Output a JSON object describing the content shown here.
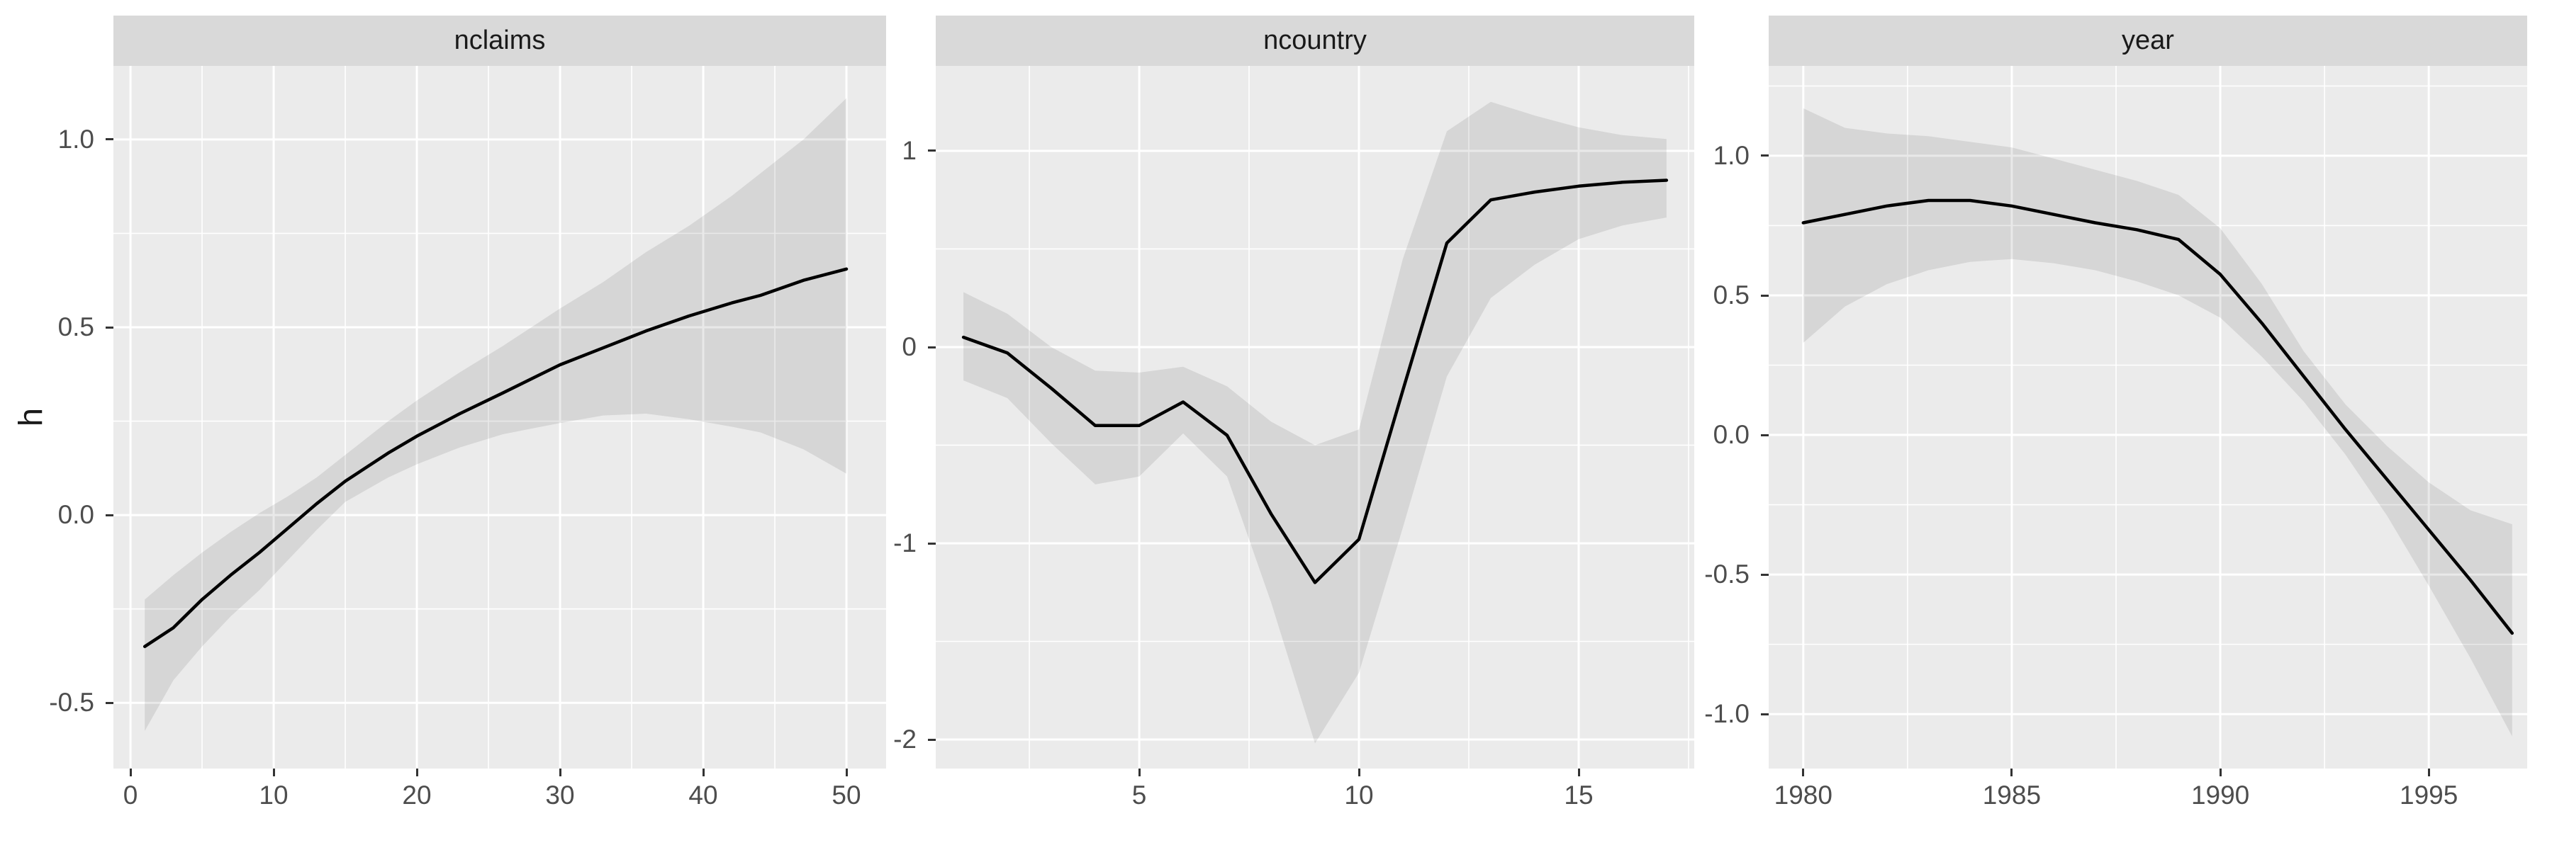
{
  "figure": {
    "y_axis_title": "h",
    "colors": {
      "panel_bg": "#EBEBEB",
      "strip_bg": "#D9D9D9",
      "grid": "#FFFFFF",
      "line": "#000000",
      "band": "rgba(0,0,0,0.085)",
      "axis_text": "#4D4D4D",
      "strip_text": "#1A1A1A",
      "tick": "#333333"
    }
  },
  "chart_data": [
    {
      "type": "line",
      "title": "nclaims",
      "ylabel": "h",
      "legend": "none",
      "grid": "on",
      "xlim": [
        -1.19,
        52.77
      ],
      "ylim": [
        -0.675,
        1.196
      ],
      "x_ticks": {
        "values": [
          0,
          10,
          20,
          30,
          40,
          50
        ],
        "labels": [
          "0",
          "10",
          "20",
          "30",
          "40",
          "50"
        ]
      },
      "x_minor": [
        5,
        15,
        25,
        35,
        45
      ],
      "y_ticks": {
        "values": [
          1.0,
          0.5,
          0.0,
          -0.5
        ],
        "labels": [
          "1.0",
          "0.5",
          "0.0",
          "-0.5"
        ]
      },
      "y_minor": [
        0.75,
        0.25,
        -0.25
      ],
      "x": [
        1,
        3,
        5,
        7,
        9,
        11,
        13,
        15,
        18,
        20,
        23,
        26,
        30,
        33,
        36,
        39,
        42,
        44,
        47,
        50
      ],
      "y": [
        -0.35,
        -0.3,
        -0.225,
        -0.16,
        -0.1,
        -0.035,
        0.03,
        0.09,
        0.165,
        0.21,
        0.27,
        0.325,
        0.4,
        0.445,
        0.49,
        0.53,
        0.565,
        0.585,
        0.625,
        0.655
      ],
      "band_upper": [
        -0.225,
        -0.16,
        -0.1,
        -0.045,
        0.005,
        0.05,
        0.1,
        0.16,
        0.25,
        0.305,
        0.38,
        0.45,
        0.55,
        0.62,
        0.7,
        0.77,
        0.85,
        0.91,
        1.0,
        1.11
      ],
      "band_lower": [
        -0.575,
        -0.44,
        -0.35,
        -0.27,
        -0.2,
        -0.12,
        -0.04,
        0.035,
        0.1,
        0.135,
        0.18,
        0.215,
        0.245,
        0.265,
        0.27,
        0.255,
        0.235,
        0.22,
        0.175,
        0.11
      ]
    },
    {
      "type": "line",
      "title": "ncountry",
      "ylabel": "h",
      "legend": "none",
      "grid": "on",
      "xlim": [
        0.37,
        17.63
      ],
      "ylim": [
        -2.148,
        1.433
      ],
      "x_ticks": {
        "values": [
          5,
          10,
          15
        ],
        "labels": [
          "5",
          "10",
          "15"
        ]
      },
      "x_minor": [
        2.5,
        7.5,
        12.5,
        17.5
      ],
      "y_ticks": {
        "values": [
          1,
          0,
          -1,
          -2
        ],
        "labels": [
          "1",
          "0",
          "-1",
          "-2"
        ]
      },
      "y_minor": [
        0.5,
        -0.5,
        -1.5
      ],
      "x": [
        1,
        2,
        3,
        4,
        5,
        6,
        7,
        8,
        9,
        10,
        11,
        12,
        13,
        14,
        15,
        16,
        17
      ],
      "y": [
        0.05,
        -0.03,
        -0.21,
        -0.4,
        -0.4,
        -0.28,
        -0.45,
        -0.85,
        -1.2,
        -0.98,
        -0.22,
        0.53,
        0.75,
        0.79,
        0.82,
        0.84,
        0.85
      ],
      "band_upper": [
        0.28,
        0.17,
        0.0,
        -0.12,
        -0.13,
        -0.1,
        -0.2,
        -0.38,
        -0.5,
        -0.42,
        0.45,
        1.1,
        1.25,
        1.18,
        1.12,
        1.08,
        1.06
      ],
      "band_lower": [
        -0.17,
        -0.26,
        -0.49,
        -0.7,
        -0.66,
        -0.44,
        -0.66,
        -1.3,
        -2.02,
        -1.66,
        -0.92,
        -0.15,
        0.25,
        0.42,
        0.55,
        0.62,
        0.66
      ]
    },
    {
      "type": "line",
      "title": "year",
      "ylabel": "h",
      "legend": "none",
      "grid": "on",
      "xlim": [
        1979.17,
        1997.36
      ],
      "ylim": [
        -1.195,
        1.322
      ],
      "x_ticks": {
        "values": [
          1980,
          1985,
          1990,
          1995
        ],
        "labels": [
          "1980",
          "1985",
          "1990",
          "1995"
        ]
      },
      "x_minor": [
        1982.5,
        1987.5,
        1992.5
      ],
      "y_ticks": {
        "values": [
          1.0,
          0.5,
          0.0,
          -0.5,
          -1.0
        ],
        "labels": [
          "1.0",
          "0.5",
          "0.0",
          "-0.5",
          "-1.0"
        ]
      },
      "y_minor": [
        1.25,
        0.75,
        0.25,
        -0.25,
        -0.75
      ],
      "x": [
        1980,
        1981,
        1982,
        1983,
        1984,
        1985,
        1986,
        1987,
        1988,
        1989,
        1990,
        1991,
        1992,
        1993,
        1994,
        1995,
        1996,
        1997
      ],
      "y": [
        0.76,
        0.79,
        0.82,
        0.84,
        0.84,
        0.82,
        0.79,
        0.76,
        0.735,
        0.7,
        0.575,
        0.4,
        0.21,
        0.02,
        -0.16,
        -0.34,
        -0.52,
        -0.71
      ],
      "band_upper": [
        1.17,
        1.1,
        1.08,
        1.07,
        1.05,
        1.03,
        0.99,
        0.95,
        0.91,
        0.86,
        0.74,
        0.54,
        0.3,
        0.11,
        -0.04,
        -0.17,
        -0.27,
        -0.32
      ],
      "band_lower": [
        0.33,
        0.46,
        0.54,
        0.59,
        0.62,
        0.63,
        0.615,
        0.59,
        0.55,
        0.5,
        0.42,
        0.28,
        0.12,
        -0.07,
        -0.29,
        -0.54,
        -0.8,
        -1.08
      ]
    }
  ]
}
